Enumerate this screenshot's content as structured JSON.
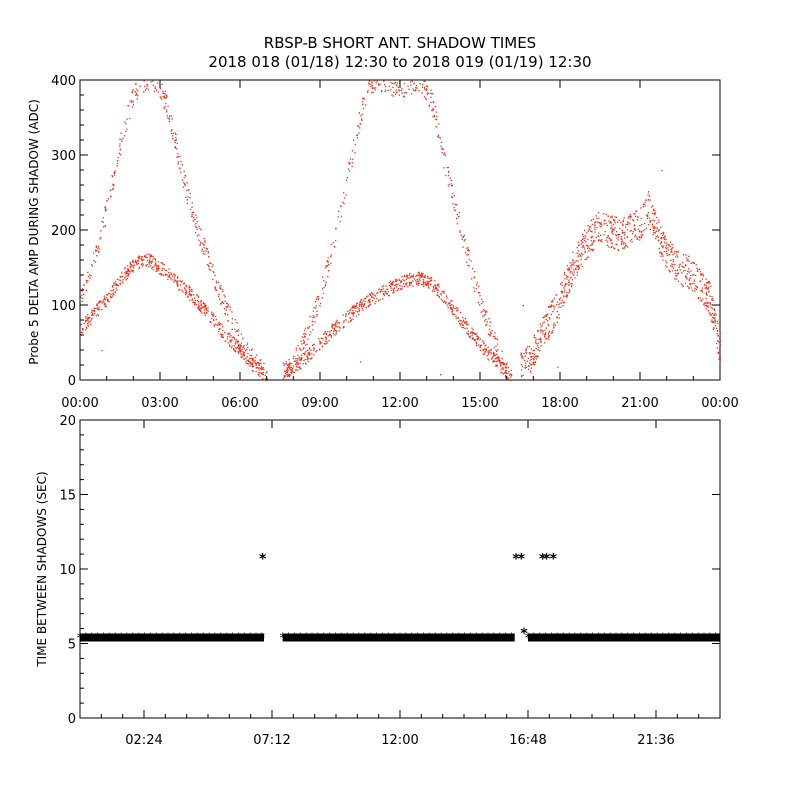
{
  "title": "RBSP-B SHORT ANT. SHADOW TIMES",
  "subtitle": "2018 018 (01/18) 12:30 to 2018 019 (01/19) 12:30",
  "colors": {
    "amp_series": "#e8321e",
    "interval_series": "#000000",
    "axes": "#000000",
    "background": "#ffffff"
  },
  "chart_data": [
    {
      "type": "scatter",
      "ylabel": "Probe 5 DELTA AMP DURING SHADOW (ADC)",
      "xlabel": "",
      "xlim": [
        0,
        24
      ],
      "ylim": [
        0,
        400
      ],
      "x_tick_labels": [
        "00:00",
        "03:00",
        "06:00",
        "09:00",
        "12:00",
        "15:00",
        "18:00",
        "21:00",
        "00:00"
      ],
      "x_tick_values": [
        0,
        3,
        6,
        9,
        12,
        15,
        18,
        21,
        24
      ],
      "y_ticks": [
        0,
        100,
        200,
        300,
        400
      ],
      "grid": false,
      "series": [
        {
          "color": "#e8321e",
          "lower_band": [
            [
              0,
              70
            ],
            [
              0.5,
              88
            ],
            [
              1,
              110
            ],
            [
              1.5,
              135
            ],
            [
              2,
              155
            ],
            [
              2.5,
              162
            ],
            [
              3,
              150
            ],
            [
              3.5,
              135
            ],
            [
              4,
              120
            ],
            [
              4.5,
              100
            ],
            [
              5,
              80
            ],
            [
              5.5,
              58
            ],
            [
              6,
              40
            ],
            [
              6.5,
              20
            ],
            [
              7,
              5
            ],
            [
              7.7,
              10
            ],
            [
              8.2,
              22
            ],
            [
              8.7,
              40
            ],
            [
              9.2,
              58
            ],
            [
              9.7,
              75
            ],
            [
              10.2,
              90
            ],
            [
              10.7,
              105
            ],
            [
              11.2,
              115
            ],
            [
              11.7,
              125
            ],
            [
              12.2,
              133
            ],
            [
              12.7,
              136
            ],
            [
              13.2,
              128
            ],
            [
              13.7,
              110
            ],
            [
              14.2,
              85
            ],
            [
              14.7,
              60
            ],
            [
              15.2,
              40
            ],
            [
              15.7,
              22
            ],
            [
              16.2,
              5
            ]
          ],
          "upper_band": [
            [
              0,
              110
            ],
            [
              0.5,
              160
            ],
            [
              1,
              230
            ],
            [
              1.3,
              280
            ],
            [
              1.6,
              330
            ],
            [
              1.9,
              370
            ],
            [
              2.2,
              395
            ],
            [
              2.6,
              400
            ],
            [
              3,
              390
            ],
            [
              3.3,
              360
            ],
            [
              3.6,
              310
            ],
            [
              4,
              250
            ],
            [
              4.4,
              200
            ],
            [
              4.8,
              160
            ],
            [
              5.2,
              120
            ],
            [
              5.6,
              85
            ],
            [
              6,
              55
            ],
            [
              6.4,
              30
            ],
            [
              6.9,
              8
            ],
            [
              7.7,
              12
            ],
            [
              8.2,
              35
            ],
            [
              8.7,
              80
            ],
            [
              9.2,
              140
            ],
            [
              9.7,
              220
            ],
            [
              10.2,
              300
            ],
            [
              10.5,
              355
            ],
            [
              10.8,
              395
            ],
            [
              11.2,
              400
            ],
            [
              12,
              390
            ],
            [
              12.7,
              400
            ],
            [
              13.2,
              370
            ],
            [
              13.6,
              300
            ],
            [
              14,
              240
            ],
            [
              14.4,
              180
            ],
            [
              14.8,
              130
            ],
            [
              15.2,
              85
            ],
            [
              15.6,
              45
            ],
            [
              16,
              10
            ]
          ],
          "late_band": [
            [
              16.5,
              15
            ],
            [
              16.9,
              30
            ],
            [
              17.3,
              60
            ],
            [
              17.6,
              80
            ],
            [
              17.9,
              100
            ],
            [
              18.2,
              130
            ],
            [
              18.6,
              160
            ],
            [
              19,
              185
            ],
            [
              19.4,
              205
            ],
            [
              19.8,
              200
            ],
            [
              20.2,
              195
            ],
            [
              20.6,
              200
            ],
            [
              21,
              210
            ],
            [
              21.3,
              230
            ],
            [
              21.6,
              200
            ],
            [
              22,
              170
            ],
            [
              22.4,
              150
            ],
            [
              22.8,
              145
            ],
            [
              23.2,
              130
            ],
            [
              23.6,
              110
            ],
            [
              24,
              40
            ]
          ]
        }
      ]
    },
    {
      "type": "scatter",
      "ylabel": "TIME BETWEEN SHADOWS (SEC)",
      "xlabel": "",
      "xlim": [
        0,
        24
      ],
      "ylim": [
        0,
        20
      ],
      "x_tick_labels": [
        "02:24",
        "07:12",
        "12:00",
        "16:48",
        "21:36"
      ],
      "x_tick_values": [
        2.4,
        7.2,
        12.0,
        16.8,
        21.6
      ],
      "y_ticks": [
        0,
        5,
        10,
        15,
        20
      ],
      "grid": false,
      "series": [
        {
          "color": "#000000",
          "marker": "*",
          "baseline_segments": [
            [
              0,
              6.9,
              5.4
            ],
            [
              7.6,
              16.3,
              5.4
            ],
            [
              16.8,
              24,
              5.4
            ]
          ],
          "points": [
            [
              6.85,
              10.7
            ],
            [
              16.35,
              10.7
            ],
            [
              16.55,
              10.7
            ],
            [
              16.65,
              5.7
            ],
            [
              17.35,
              10.7
            ],
            [
              17.5,
              10.7
            ],
            [
              17.75,
              10.7
            ]
          ]
        }
      ]
    }
  ]
}
